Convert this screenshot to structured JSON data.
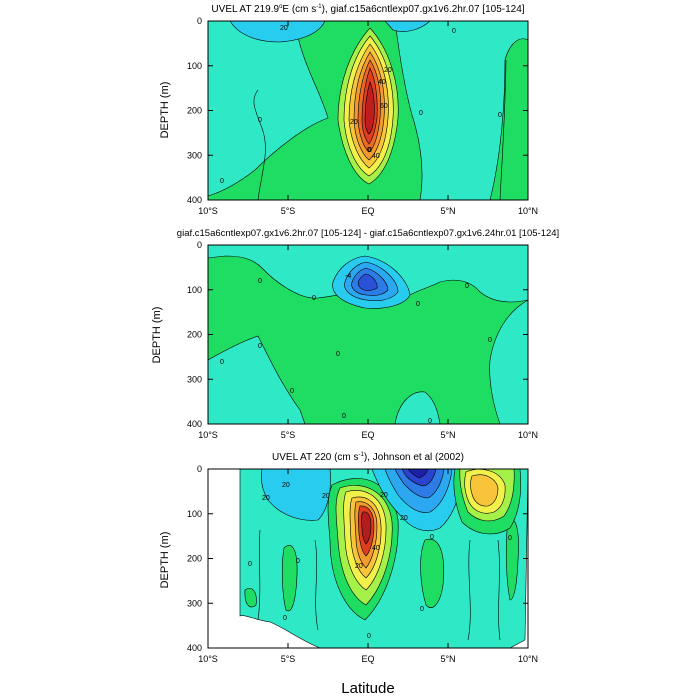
{
  "figure": {
    "xlabel": "Latitude"
  },
  "chart_data": [
    {
      "type": "contour",
      "title_main": "UVEL AT 219.9",
      "title_sup": "o",
      "title_rest": "E (cm s",
      "title_exp": "-1",
      "title_tail": "), giaf.c15a6cntlexp07.gx1v6.2hr.07 [105-124]",
      "ylabel": "DEPTH (m)",
      "x_ticks": [
        "10°S",
        "5°S",
        "EQ",
        "5°N",
        "10°N"
      ],
      "x_values": [
        -10,
        -5,
        0,
        5,
        10
      ],
      "y_ticks": [
        "0",
        "100",
        "200",
        "300",
        "400"
      ],
      "y_values": [
        0,
        100,
        200,
        300,
        400
      ],
      "xlim": [
        -10,
        10
      ],
      "ylim": [
        400,
        0
      ],
      "contour_labels": [
        "20",
        "0",
        "20",
        "40",
        "60",
        "40",
        "20",
        "0",
        "0",
        "0",
        "0",
        "0",
        "0",
        "0"
      ]
    },
    {
      "type": "contour",
      "title_main": "giaf.c15a6cntlexp07.gx1v6.2hr.07 [105-124] - giaf.c15a6cntlexp07.gx1v6.24hr.01 [105-124]",
      "ylabel": "DEPTH (m)",
      "x_ticks": [
        "10°S",
        "5°S",
        "EQ",
        "5°N",
        "10°N"
      ],
      "x_values": [
        -10,
        -5,
        0,
        5,
        10
      ],
      "y_ticks": [
        "0",
        "100",
        "200",
        "300",
        "400"
      ],
      "y_values": [
        0,
        100,
        200,
        300,
        400
      ],
      "xlim": [
        -10,
        10
      ],
      "ylim": [
        400,
        0
      ],
      "contour_labels": [
        "-4",
        "0",
        "0",
        "0",
        "0",
        "0",
        "0",
        "0",
        "0",
        "0",
        "0",
        "0"
      ]
    },
    {
      "type": "contour",
      "title_main": "UVEL AT 220 (cm s",
      "title_exp": "-1",
      "title_tail": "), Johnson et al (2002)",
      "ylabel": "DEPTH (m)",
      "x_ticks": [
        "10°S",
        "5°S",
        "EQ",
        "5°N",
        "10°N"
      ],
      "x_values": [
        -10,
        -5,
        0,
        5,
        10
      ],
      "y_ticks": [
        "0",
        "100",
        "200",
        "300",
        "400"
      ],
      "y_values": [
        0,
        100,
        200,
        300,
        400
      ],
      "xlim": [
        -10,
        10
      ],
      "ylim": [
        400,
        0
      ],
      "contour_labels": [
        "20",
        "20",
        "20",
        "20",
        "20",
        "40",
        "20",
        "0",
        "0",
        "0",
        "0",
        "0",
        "0",
        "0"
      ]
    }
  ]
}
